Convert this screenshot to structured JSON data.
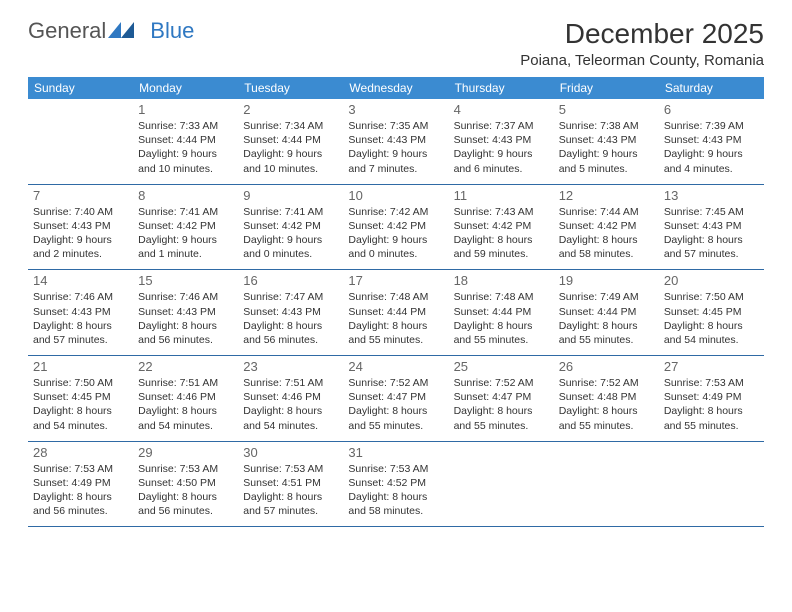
{
  "brand": {
    "part1": "General",
    "part2": "Blue"
  },
  "title": "December 2025",
  "location": "Poiana, Teleorman County, Romania",
  "header_bg": "#3b8bd1",
  "row_border": "#2f6aa5",
  "weekdays": [
    "Sunday",
    "Monday",
    "Tuesday",
    "Wednesday",
    "Thursday",
    "Friday",
    "Saturday"
  ],
  "weeks": [
    [
      null,
      {
        "n": "1",
        "sr": "7:33 AM",
        "ss": "4:44 PM",
        "dl": "9 hours and 10 minutes."
      },
      {
        "n": "2",
        "sr": "7:34 AM",
        "ss": "4:44 PM",
        "dl": "9 hours and 10 minutes."
      },
      {
        "n": "3",
        "sr": "7:35 AM",
        "ss": "4:43 PM",
        "dl": "9 hours and 7 minutes."
      },
      {
        "n": "4",
        "sr": "7:37 AM",
        "ss": "4:43 PM",
        "dl": "9 hours and 6 minutes."
      },
      {
        "n": "5",
        "sr": "7:38 AM",
        "ss": "4:43 PM",
        "dl": "9 hours and 5 minutes."
      },
      {
        "n": "6",
        "sr": "7:39 AM",
        "ss": "4:43 PM",
        "dl": "9 hours and 4 minutes."
      }
    ],
    [
      {
        "n": "7",
        "sr": "7:40 AM",
        "ss": "4:43 PM",
        "dl": "9 hours and 2 minutes."
      },
      {
        "n": "8",
        "sr": "7:41 AM",
        "ss": "4:42 PM",
        "dl": "9 hours and 1 minute."
      },
      {
        "n": "9",
        "sr": "7:41 AM",
        "ss": "4:42 PM",
        "dl": "9 hours and 0 minutes."
      },
      {
        "n": "10",
        "sr": "7:42 AM",
        "ss": "4:42 PM",
        "dl": "9 hours and 0 minutes."
      },
      {
        "n": "11",
        "sr": "7:43 AM",
        "ss": "4:42 PM",
        "dl": "8 hours and 59 minutes."
      },
      {
        "n": "12",
        "sr": "7:44 AM",
        "ss": "4:42 PM",
        "dl": "8 hours and 58 minutes."
      },
      {
        "n": "13",
        "sr": "7:45 AM",
        "ss": "4:43 PM",
        "dl": "8 hours and 57 minutes."
      }
    ],
    [
      {
        "n": "14",
        "sr": "7:46 AM",
        "ss": "4:43 PM",
        "dl": "8 hours and 57 minutes."
      },
      {
        "n": "15",
        "sr": "7:46 AM",
        "ss": "4:43 PM",
        "dl": "8 hours and 56 minutes."
      },
      {
        "n": "16",
        "sr": "7:47 AM",
        "ss": "4:43 PM",
        "dl": "8 hours and 56 minutes."
      },
      {
        "n": "17",
        "sr": "7:48 AM",
        "ss": "4:44 PM",
        "dl": "8 hours and 55 minutes."
      },
      {
        "n": "18",
        "sr": "7:48 AM",
        "ss": "4:44 PM",
        "dl": "8 hours and 55 minutes."
      },
      {
        "n": "19",
        "sr": "7:49 AM",
        "ss": "4:44 PM",
        "dl": "8 hours and 55 minutes."
      },
      {
        "n": "20",
        "sr": "7:50 AM",
        "ss": "4:45 PM",
        "dl": "8 hours and 54 minutes."
      }
    ],
    [
      {
        "n": "21",
        "sr": "7:50 AM",
        "ss": "4:45 PM",
        "dl": "8 hours and 54 minutes."
      },
      {
        "n": "22",
        "sr": "7:51 AM",
        "ss": "4:46 PM",
        "dl": "8 hours and 54 minutes."
      },
      {
        "n": "23",
        "sr": "7:51 AM",
        "ss": "4:46 PM",
        "dl": "8 hours and 54 minutes."
      },
      {
        "n": "24",
        "sr": "7:52 AM",
        "ss": "4:47 PM",
        "dl": "8 hours and 55 minutes."
      },
      {
        "n": "25",
        "sr": "7:52 AM",
        "ss": "4:47 PM",
        "dl": "8 hours and 55 minutes."
      },
      {
        "n": "26",
        "sr": "7:52 AM",
        "ss": "4:48 PM",
        "dl": "8 hours and 55 minutes."
      },
      {
        "n": "27",
        "sr": "7:53 AM",
        "ss": "4:49 PM",
        "dl": "8 hours and 55 minutes."
      }
    ],
    [
      {
        "n": "28",
        "sr": "7:53 AM",
        "ss": "4:49 PM",
        "dl": "8 hours and 56 minutes."
      },
      {
        "n": "29",
        "sr": "7:53 AM",
        "ss": "4:50 PM",
        "dl": "8 hours and 56 minutes."
      },
      {
        "n": "30",
        "sr": "7:53 AM",
        "ss": "4:51 PM",
        "dl": "8 hours and 57 minutes."
      },
      {
        "n": "31",
        "sr": "7:53 AM",
        "ss": "4:52 PM",
        "dl": "8 hours and 58 minutes."
      },
      null,
      null,
      null
    ]
  ],
  "labels": {
    "sunrise": "Sunrise:",
    "sunset": "Sunset:",
    "daylight": "Daylight:"
  }
}
